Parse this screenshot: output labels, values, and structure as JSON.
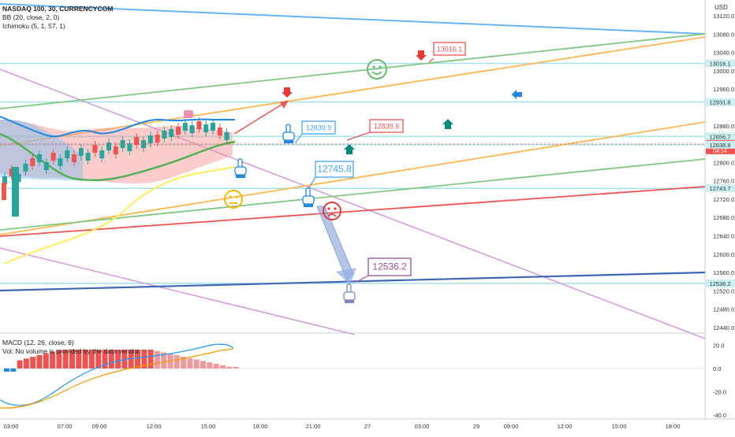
{
  "header": {
    "title": "NASDAQ 100, 30, CURRENCYCOM",
    "indicators": [
      "BB (20, close, 2, 0)",
      "Ichimoku (5, 1, 57, 1)"
    ],
    "currency": "USD"
  },
  "price_axis": {
    "ticks": [
      "13120.0",
      "13080.0",
      "13040.0",
      "13000.0",
      "12960.0",
      "12880.0",
      "12800.0",
      "12760.0",
      "12720.0",
      "12680.0",
      "12640.0",
      "12600.0",
      "12560.0",
      "12520.0",
      "12480.0",
      "12440.0"
    ],
    "tick_values": [
      13120,
      13080,
      13040,
      13000,
      12960,
      12880,
      12800,
      12760,
      12720,
      12680,
      12640,
      12600,
      12560,
      12520,
      12480,
      12440
    ],
    "badges": [
      {
        "label": "13016.1",
        "value": 13016.1,
        "bg": "#cfeef0"
      },
      {
        "label": "12931.8",
        "value": 12931.8,
        "bg": "#cfeef0"
      },
      {
        "label": "12856.7",
        "value": 12856.7,
        "bg": "#cfeef0"
      },
      {
        "label": "12840.4",
        "value": 12840.4,
        "bg": "#ef5350",
        "countdown": "04:14"
      },
      {
        "label": "12838.8",
        "value": 12838.8,
        "bg": "#cfeef0"
      },
      {
        "label": "12743.7",
        "value": 12743.7,
        "bg": "#cfeef0"
      },
      {
        "label": "12536.2",
        "value": 12536.2,
        "bg": "#cfeef0"
      }
    ]
  },
  "annotations": [
    {
      "label": "13016.1",
      "color": "#ef5350"
    },
    {
      "label": "12839.9",
      "color": "#ef5350"
    },
    {
      "label": "12839.9",
      "color": "#42a5f5"
    },
    {
      "label": "12745.8",
      "color": "#42a5f5"
    },
    {
      "label": "12536.2",
      "color": "#9c4f96"
    }
  ],
  "macd": {
    "title": "MACD (12, 26, close, 9)",
    "note": "Vol: No volume is provided by the data vendor.",
    "ticks": [
      "20.0",
      "0.0",
      "-20.0",
      "-40.0"
    ],
    "tick_values": [
      20,
      0,
      -20,
      -40
    ]
  },
  "time_axis": {
    "labels": [
      "03:00",
      "07:00",
      "09:00",
      "12:00",
      "15:00",
      "18:00",
      "21:00",
      "27",
      "03:00",
      "29",
      "09:00",
      "12:00",
      "15:00",
      "18:00"
    ]
  },
  "colors": {
    "bull": "#26a69a",
    "bear": "#ef5350",
    "hline": "#a6e3ea",
    "macd_line": "#2196f3",
    "signal_line": "#ff9800"
  },
  "chart_data": {
    "type": "line",
    "title": "NASDAQ 100, 30, CURRENCYCOM",
    "ylim": [
      12420,
      13135
    ],
    "horizontal_levels": [
      13016.1,
      12931.8,
      12856.7,
      12838.8,
      12743.7,
      12536.2
    ],
    "last_price": 12840.4,
    "macd_ylim": [
      -42,
      24
    ]
  }
}
